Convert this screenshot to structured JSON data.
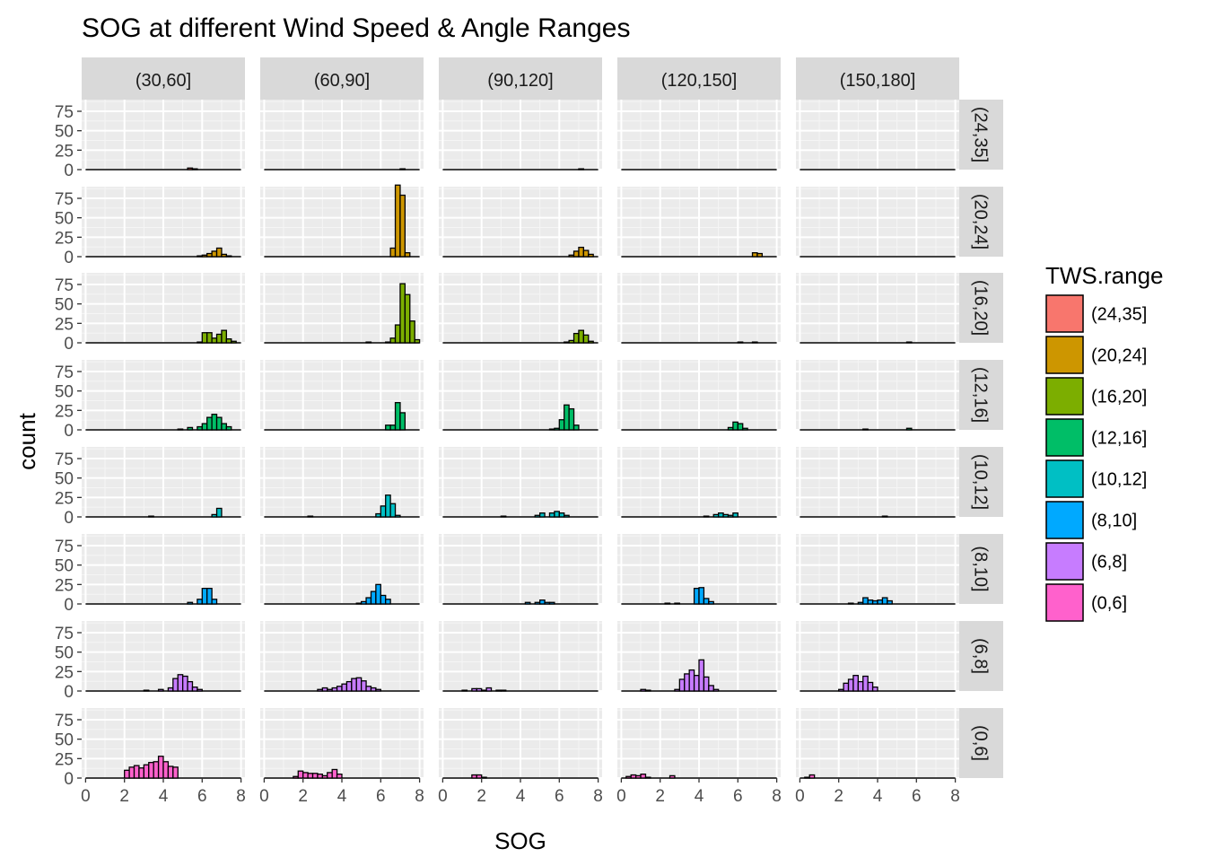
{
  "chart_data": {
    "type": "bar",
    "subtype": "faceted-histogram",
    "title": "SOG at different Wind Speed & Angle Ranges",
    "xlabel": "SOG",
    "ylabel": "count",
    "xlim": [
      0,
      8
    ],
    "ylim": [
      0,
      90
    ],
    "x_ticks": [
      0,
      2,
      4,
      6,
      8
    ],
    "y_ticks": [
      0,
      25,
      50,
      75
    ],
    "grid": true,
    "column_facet_labels": [
      "(30,60]",
      "(60,90]",
      "(90,120]",
      "(120,150]",
      "(150,180]"
    ],
    "row_facet_labels": [
      "(24,35]",
      "(20,24]",
      "(16,20]",
      "(12,16]",
      "(10,12]",
      "(8,10]",
      "(6,8]",
      "(0,6]"
    ],
    "legend": {
      "title": "TWS.range",
      "position": "right",
      "entries": [
        {
          "label": "(24,35]",
          "color": "#F8766D"
        },
        {
          "label": "(20,24]",
          "color": "#CD9600"
        },
        {
          "label": "(16,20]",
          "color": "#7CAE00"
        },
        {
          "label": "(12,16]",
          "color": "#00BE67"
        },
        {
          "label": "(10,12]",
          "color": "#00BFC4"
        },
        {
          "label": "(8,10]",
          "color": "#00A9FF"
        },
        {
          "label": "(6,8]",
          "color": "#C77CFF"
        },
        {
          "label": "(0,6]",
          "color": "#FF61CC"
        }
      ]
    },
    "bin_width": 0.25,
    "panels": [
      {
        "row": "(24,35]",
        "col": "(30,60]",
        "bins": [
          [
            5.375,
            2
          ],
          [
            5.625,
            1
          ]
        ]
      },
      {
        "row": "(24,35]",
        "col": "(60,90]",
        "bins": [
          [
            7.125,
            1
          ]
        ]
      },
      {
        "row": "(24,35]",
        "col": "(90,120]",
        "bins": [
          [
            7.125,
            1
          ]
        ]
      },
      {
        "row": "(24,35]",
        "col": "(120,150]",
        "bins": []
      },
      {
        "row": "(24,35]",
        "col": "(150,180]",
        "bins": []
      },
      {
        "row": "(20,24]",
        "col": "(30,60]",
        "bins": [
          [
            5.875,
            1
          ],
          [
            6.125,
            2
          ],
          [
            6.375,
            4
          ],
          [
            6.625,
            7
          ],
          [
            6.875,
            11
          ],
          [
            7.125,
            3
          ],
          [
            7.375,
            1
          ]
        ]
      },
      {
        "row": "(20,24]",
        "col": "(60,90]",
        "bins": [
          [
            6.625,
            11
          ],
          [
            6.875,
            92
          ],
          [
            7.125,
            79
          ],
          [
            7.375,
            5
          ]
        ]
      },
      {
        "row": "(20,24]",
        "col": "(90,120]",
        "bins": [
          [
            6.625,
            2
          ],
          [
            6.875,
            7
          ],
          [
            7.125,
            12
          ],
          [
            7.375,
            8
          ],
          [
            7.625,
            3
          ]
        ]
      },
      {
        "row": "(20,24]",
        "col": "(120,150]",
        "bins": [
          [
            6.875,
            5
          ],
          [
            7.125,
            4
          ]
        ]
      },
      {
        "row": "(20,24]",
        "col": "(150,180]",
        "bins": []
      },
      {
        "row": "(16,20]",
        "col": "(30,60]",
        "bins": [
          [
            5.875,
            1
          ],
          [
            6.125,
            13
          ],
          [
            6.375,
            13
          ],
          [
            6.625,
            6
          ],
          [
            6.875,
            11
          ],
          [
            7.125,
            16
          ],
          [
            7.375,
            5
          ],
          [
            7.625,
            2
          ]
        ]
      },
      {
        "row": "(16,20]",
        "col": "(60,90]",
        "bins": [
          [
            5.375,
            1
          ],
          [
            6.375,
            1
          ],
          [
            6.625,
            6
          ],
          [
            6.875,
            23
          ],
          [
            7.125,
            76
          ],
          [
            7.375,
            62
          ],
          [
            7.625,
            28
          ],
          [
            7.875,
            4
          ]
        ]
      },
      {
        "row": "(16,20]",
        "col": "(90,120]",
        "bins": [
          [
            6.375,
            1
          ],
          [
            6.625,
            3
          ],
          [
            6.875,
            12
          ],
          [
            7.125,
            16
          ],
          [
            7.375,
            10
          ],
          [
            7.625,
            2
          ]
        ]
      },
      {
        "row": "(16,20]",
        "col": "(120,150]",
        "bins": [
          [
            6.125,
            1
          ],
          [
            6.875,
            1
          ]
        ]
      },
      {
        "row": "(16,20]",
        "col": "(150,180]",
        "bins": [
          [
            5.625,
            1
          ]
        ]
      },
      {
        "row": "(12,16]",
        "col": "(30,60]",
        "bins": [
          [
            4.875,
            1
          ],
          [
            5.375,
            3
          ],
          [
            5.875,
            4
          ],
          [
            6.125,
            8
          ],
          [
            6.375,
            16
          ],
          [
            6.625,
            20
          ],
          [
            6.875,
            16
          ],
          [
            7.125,
            8
          ],
          [
            7.375,
            4
          ]
        ]
      },
      {
        "row": "(12,16]",
        "col": "(60,90]",
        "bins": [
          [
            6.375,
            6
          ],
          [
            6.625,
            6
          ],
          [
            6.875,
            35
          ],
          [
            7.125,
            22
          ]
        ]
      },
      {
        "row": "(12,16]",
        "col": "(90,120]",
        "bins": [
          [
            5.625,
            1
          ],
          [
            5.875,
            2
          ],
          [
            6.125,
            13
          ],
          [
            6.375,
            32
          ],
          [
            6.625,
            27
          ],
          [
            6.875,
            6
          ]
        ]
      },
      {
        "row": "(12,16]",
        "col": "(120,150]",
        "bins": [
          [
            5.625,
            3
          ],
          [
            5.875,
            10
          ],
          [
            6.125,
            8
          ],
          [
            6.375,
            2
          ]
        ]
      },
      {
        "row": "(12,16]",
        "col": "(150,180]",
        "bins": [
          [
            3.375,
            1
          ],
          [
            5.625,
            2
          ]
        ]
      },
      {
        "row": "(10,12]",
        "col": "(30,60]",
        "bins": [
          [
            3.375,
            1
          ],
          [
            6.625,
            3
          ],
          [
            6.875,
            11
          ]
        ]
      },
      {
        "row": "(10,12]",
        "col": "(60,90]",
        "bins": [
          [
            2.375,
            1
          ],
          [
            5.875,
            4
          ],
          [
            6.125,
            14
          ],
          [
            6.375,
            28
          ],
          [
            6.625,
            17
          ],
          [
            6.875,
            2
          ]
        ]
      },
      {
        "row": "(10,12]",
        "col": "(90,120]",
        "bins": [
          [
            3.125,
            1
          ],
          [
            4.875,
            2
          ],
          [
            5.125,
            5
          ],
          [
            5.625,
            5
          ],
          [
            5.875,
            7
          ],
          [
            6.125,
            5
          ],
          [
            6.375,
            2
          ]
        ]
      },
      {
        "row": "(10,12]",
        "col": "(120,150]",
        "bins": [
          [
            4.375,
            1
          ],
          [
            4.875,
            3
          ],
          [
            5.125,
            5
          ],
          [
            5.375,
            3
          ],
          [
            5.625,
            2
          ],
          [
            5.875,
            5
          ]
        ]
      },
      {
        "row": "(10,12]",
        "col": "(150,180]",
        "bins": [
          [
            4.375,
            1
          ]
        ]
      },
      {
        "row": "(8,10]",
        "col": "(30,60]",
        "bins": [
          [
            5.375,
            2
          ],
          [
            5.875,
            6
          ],
          [
            6.125,
            20
          ],
          [
            6.375,
            20
          ],
          [
            6.625,
            6
          ]
        ]
      },
      {
        "row": "(8,10]",
        "col": "(60,90]",
        "bins": [
          [
            4.875,
            1
          ],
          [
            5.125,
            3
          ],
          [
            5.375,
            8
          ],
          [
            5.625,
            16
          ],
          [
            5.875,
            25
          ],
          [
            6.125,
            11
          ],
          [
            6.375,
            6
          ]
        ]
      },
      {
        "row": "(8,10]",
        "col": "(90,120]",
        "bins": [
          [
            4.375,
            2
          ],
          [
            4.875,
            2
          ],
          [
            5.125,
            5
          ],
          [
            5.375,
            2
          ],
          [
            5.625,
            2
          ]
        ]
      },
      {
        "row": "(8,10]",
        "col": "(120,150]",
        "bins": [
          [
            2.375,
            1
          ],
          [
            2.875,
            1
          ],
          [
            3.875,
            20
          ],
          [
            4.125,
            21
          ],
          [
            4.375,
            7
          ],
          [
            4.625,
            3
          ]
        ]
      },
      {
        "row": "(8,10]",
        "col": "(150,180]",
        "bins": [
          [
            2.625,
            1
          ],
          [
            3.125,
            2
          ],
          [
            3.375,
            8
          ],
          [
            3.625,
            5
          ],
          [
            3.875,
            4
          ],
          [
            4.125,
            5
          ],
          [
            4.375,
            8
          ],
          [
            4.625,
            4
          ]
        ]
      },
      {
        "row": "(6,8]",
        "col": "(30,60]",
        "bins": [
          [
            3.125,
            1
          ],
          [
            3.875,
            2
          ],
          [
            4.375,
            4
          ],
          [
            4.625,
            16
          ],
          [
            4.875,
            21
          ],
          [
            5.125,
            19
          ],
          [
            5.375,
            12
          ],
          [
            5.625,
            5
          ],
          [
            5.875,
            2
          ]
        ]
      },
      {
        "row": "(6,8]",
        "col": "(60,90]",
        "bins": [
          [
            2.875,
            2
          ],
          [
            3.125,
            4
          ],
          [
            3.375,
            2
          ],
          [
            3.625,
            4
          ],
          [
            3.875,
            6
          ],
          [
            4.125,
            9
          ],
          [
            4.375,
            12
          ],
          [
            4.625,
            16
          ],
          [
            4.875,
            17
          ],
          [
            5.125,
            13
          ],
          [
            5.375,
            6
          ],
          [
            5.625,
            4
          ],
          [
            5.875,
            2
          ]
        ]
      },
      {
        "row": "(6,8]",
        "col": "(90,120]",
        "bins": [
          [
            1.125,
            1
          ],
          [
            1.625,
            3
          ],
          [
            1.875,
            3
          ],
          [
            2.125,
            1
          ],
          [
            2.375,
            4
          ],
          [
            2.875,
            1
          ],
          [
            3.125,
            1
          ]
        ]
      },
      {
        "row": "(6,8]",
        "col": "(120,150]",
        "bins": [
          [
            1.125,
            2
          ],
          [
            1.375,
            1
          ],
          [
            2.875,
            2
          ],
          [
            3.125,
            15
          ],
          [
            3.375,
            22
          ],
          [
            3.625,
            27
          ],
          [
            3.875,
            20
          ],
          [
            4.125,
            40
          ],
          [
            4.375,
            18
          ],
          [
            4.625,
            7
          ],
          [
            4.875,
            2
          ]
        ]
      },
      {
        "row": "(6,8]",
        "col": "(150,180]",
        "bins": [
          [
            2.125,
            2
          ],
          [
            2.375,
            10
          ],
          [
            2.625,
            15
          ],
          [
            2.875,
            20
          ],
          [
            3.125,
            12
          ],
          [
            3.375,
            19
          ],
          [
            3.625,
            11
          ],
          [
            3.875,
            5
          ]
        ]
      },
      {
        "row": "(0,6]",
        "col": "(30,60]",
        "bins": [
          [
            2.125,
            10
          ],
          [
            2.375,
            14
          ],
          [
            2.625,
            16
          ],
          [
            2.875,
            13
          ],
          [
            3.125,
            17
          ],
          [
            3.375,
            20
          ],
          [
            3.625,
            21
          ],
          [
            3.875,
            28
          ],
          [
            4.125,
            21
          ],
          [
            4.375,
            15
          ],
          [
            4.625,
            14
          ]
        ]
      },
      {
        "row": "(0,6]",
        "col": "(60,90]",
        "bins": [
          [
            1.625,
            2
          ],
          [
            1.875,
            9
          ],
          [
            2.125,
            7
          ],
          [
            2.375,
            6
          ],
          [
            2.625,
            6
          ],
          [
            2.875,
            5
          ],
          [
            3.125,
            3
          ],
          [
            3.375,
            7
          ],
          [
            3.625,
            11
          ],
          [
            3.875,
            5
          ]
        ]
      },
      {
        "row": "(0,6]",
        "col": "(90,120]",
        "bins": [
          [
            1.625,
            4
          ],
          [
            1.875,
            4
          ],
          [
            2.125,
            1
          ]
        ]
      },
      {
        "row": "(0,6]",
        "col": "(120,150]",
        "bins": [
          [
            0.375,
            2
          ],
          [
            0.625,
            4
          ],
          [
            0.875,
            3
          ],
          [
            1.125,
            5
          ],
          [
            1.375,
            1
          ],
          [
            2.625,
            3
          ]
        ]
      },
      {
        "row": "(0,6]",
        "col": "(150,180]",
        "bins": [
          [
            0.375,
            1
          ],
          [
            0.625,
            4
          ]
        ]
      }
    ]
  }
}
